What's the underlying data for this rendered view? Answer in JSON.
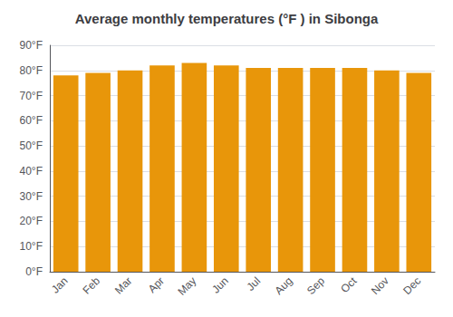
{
  "chart_data": {
    "type": "bar",
    "title": "Average monthly temperatures (°F ) in Sibonga",
    "categories": [
      "Jan",
      "Feb",
      "Mar",
      "Apr",
      "May",
      "Jun",
      "Jul",
      "Aug",
      "Sep",
      "Oct",
      "Nov",
      "Dec"
    ],
    "values": [
      78,
      79,
      80,
      82,
      83,
      82,
      81,
      81,
      81,
      81,
      80,
      79
    ],
    "color": "#E8960A",
    "ylim": [
      0,
      90
    ],
    "yticks": [
      {
        "value": 0,
        "label": "0°F"
      },
      {
        "value": 10,
        "label": "10°F"
      },
      {
        "value": 20,
        "label": "20°F"
      },
      {
        "value": 30,
        "label": "30°F"
      },
      {
        "value": 40,
        "label": "40°F"
      },
      {
        "value": 50,
        "label": "50°F"
      },
      {
        "value": 60,
        "label": "60°F"
      },
      {
        "value": 70,
        "label": "70°F"
      },
      {
        "value": 80,
        "label": "80°F"
      },
      {
        "value": 90,
        "label": "90°F"
      }
    ],
    "grid": true
  }
}
